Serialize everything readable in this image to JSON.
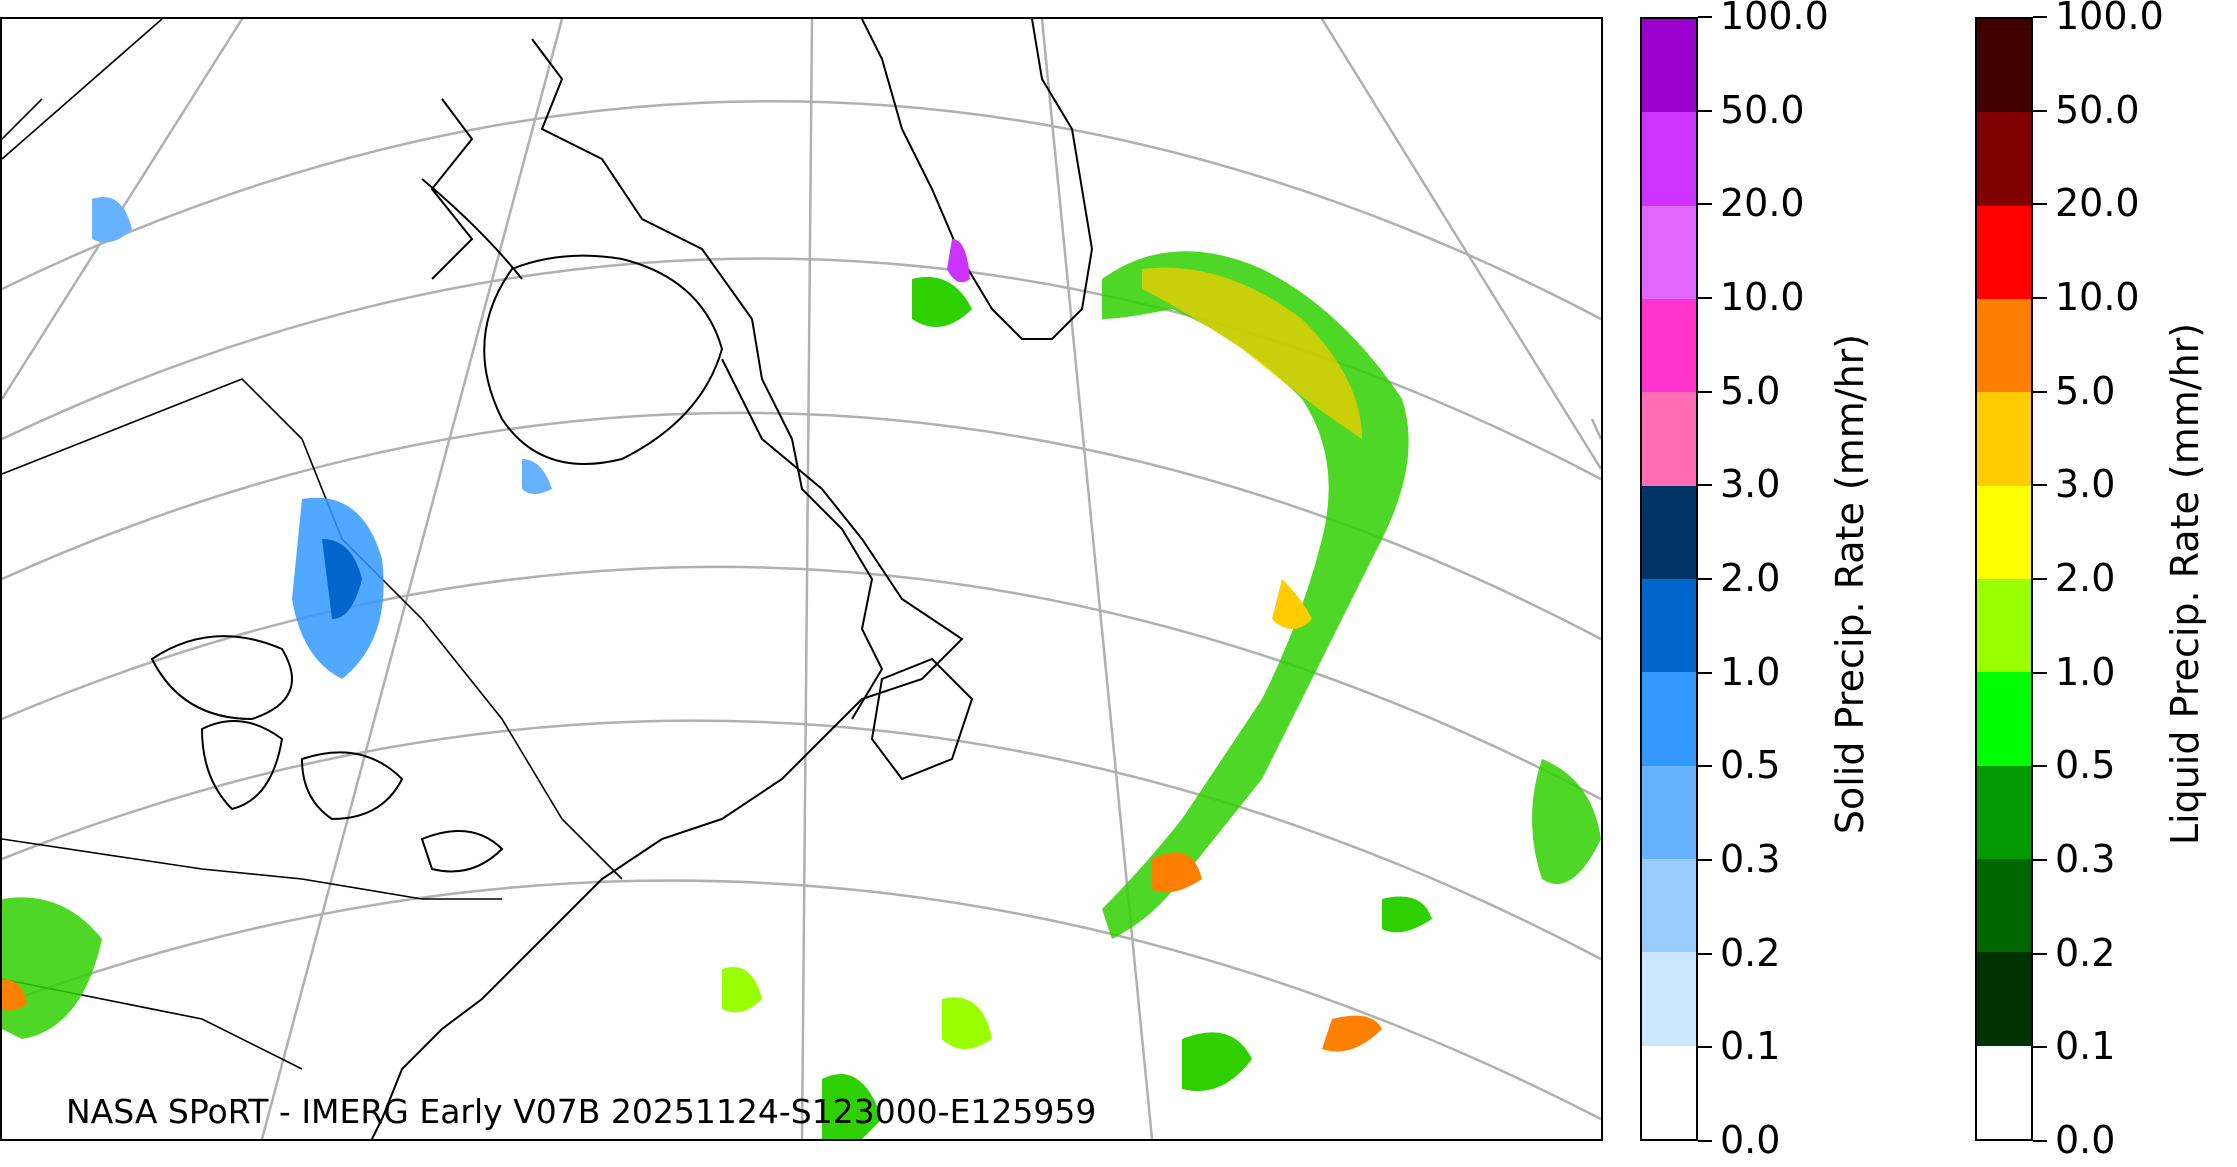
{
  "map": {
    "credit": "NASA SPoRT - IMERG Early V07B 20251124-S123000-E125959",
    "colors": {
      "graticule": "#b0b0b0",
      "coast": "#000000"
    }
  },
  "solid_colorbar": {
    "title": "Solid Precip. Rate (mm/hr)",
    "ticks": [
      "0.0",
      "0.1",
      "0.2",
      "0.3",
      "0.5",
      "1.0",
      "2.0",
      "3.0",
      "5.0",
      "10.0",
      "20.0",
      "50.0",
      "100.0"
    ],
    "colors": [
      "#ffffff",
      "#cce6ff",
      "#99ccff",
      "#66b2ff",
      "#3399ff",
      "#0066cc",
      "#003366",
      "#ff6eb4",
      "#ff33cc",
      "#e066ff",
      "#cc33ff",
      "#9900cc"
    ]
  },
  "liquid_colorbar": {
    "title": "Liquid Precip. Rate (mm/hr)",
    "ticks": [
      "0.0",
      "0.1",
      "0.2",
      "0.3",
      "0.5",
      "1.0",
      "2.0",
      "3.0",
      "5.0",
      "10.0",
      "20.0",
      "50.0",
      "100.0"
    ],
    "colors": [
      "#ffffff",
      "#003300",
      "#006600",
      "#009900",
      "#00ff00",
      "#99ff00",
      "#ffff00",
      "#ffcc00",
      "#ff8000",
      "#ff0000",
      "#800000",
      "#400000"
    ]
  }
}
